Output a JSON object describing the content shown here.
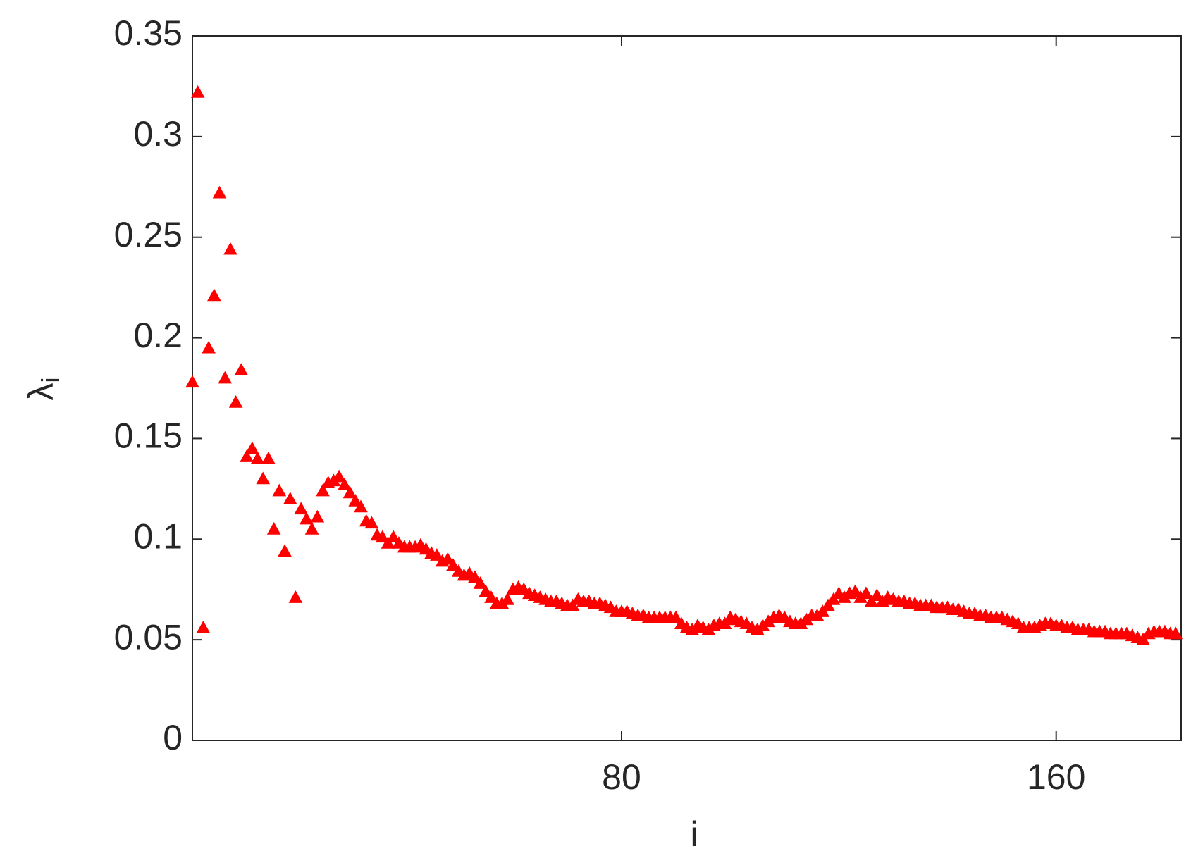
{
  "chart_data": {
    "type": "scatter",
    "marker": "triangle",
    "color": "#ff0000",
    "xlabel": "i",
    "ylabel": "λ",
    "ylabel_subscript": "i",
    "xlim": [
      1,
      183
    ],
    "xticks": [
      80,
      160
    ],
    "ylim": [
      0,
      0.35
    ],
    "yticks": [
      0,
      0.05,
      0.1,
      0.15,
      0.2,
      0.25,
      0.3,
      0.35
    ],
    "x": [
      1,
      2,
      3,
      4,
      5,
      6,
      7,
      8,
      9,
      10,
      11,
      12,
      13,
      14,
      15,
      16,
      17,
      18,
      19,
      20,
      21,
      22,
      23,
      24,
      25,
      26,
      27,
      28,
      29,
      30,
      31,
      32,
      33,
      34,
      35,
      36,
      37,
      38,
      39,
      40,
      41,
      42,
      43,
      44,
      45,
      46,
      47,
      48,
      49,
      50,
      51,
      52,
      53,
      54,
      55,
      56,
      57,
      58,
      59,
      60,
      61,
      62,
      63,
      64,
      65,
      66,
      67,
      68,
      69,
      70,
      71,
      72,
      73,
      74,
      75,
      76,
      77,
      78,
      79,
      80,
      81,
      82,
      83,
      84,
      85,
      86,
      87,
      88,
      89,
      90,
      91,
      92,
      93,
      94,
      95,
      96,
      97,
      98,
      99,
      100,
      101,
      102,
      103,
      104,
      105,
      106,
      107,
      108,
      109,
      110,
      111,
      112,
      113,
      114,
      115,
      116,
      117,
      118,
      119,
      120,
      121,
      122,
      123,
      124,
      125,
      126,
      127,
      128,
      129,
      130,
      131,
      132,
      133,
      134,
      135,
      136,
      137,
      138,
      139,
      140,
      141,
      142,
      143,
      144,
      145,
      146,
      147,
      148,
      149,
      150,
      151,
      152,
      153,
      154,
      155,
      156,
      157,
      158,
      159,
      160,
      161,
      162,
      163,
      164,
      165,
      166,
      167,
      168,
      169,
      170,
      171,
      172,
      173,
      174,
      175,
      176,
      177,
      178,
      179,
      180,
      181,
      182
    ],
    "values": [
      0.178,
      0.322,
      0.056,
      0.195,
      0.221,
      0.272,
      0.18,
      0.244,
      0.168,
      0.184,
      0.141,
      0.145,
      0.14,
      0.13,
      0.14,
      0.105,
      0.124,
      0.094,
      0.12,
      0.071,
      0.115,
      0.11,
      0.105,
      0.111,
      0.124,
      0.128,
      0.129,
      0.131,
      0.127,
      0.123,
      0.119,
      0.116,
      0.109,
      0.108,
      0.102,
      0.101,
      0.098,
      0.101,
      0.098,
      0.096,
      0.096,
      0.096,
      0.097,
      0.095,
      0.093,
      0.092,
      0.089,
      0.09,
      0.087,
      0.084,
      0.082,
      0.083,
      0.081,
      0.078,
      0.074,
      0.071,
      0.068,
      0.068,
      0.07,
      0.075,
      0.076,
      0.075,
      0.073,
      0.072,
      0.071,
      0.07,
      0.069,
      0.069,
      0.068,
      0.067,
      0.067,
      0.07,
      0.069,
      0.069,
      0.068,
      0.068,
      0.067,
      0.066,
      0.064,
      0.064,
      0.064,
      0.063,
      0.062,
      0.062,
      0.061,
      0.061,
      0.061,
      0.061,
      0.061,
      0.061,
      0.058,
      0.056,
      0.055,
      0.057,
      0.056,
      0.055,
      0.057,
      0.058,
      0.058,
      0.061,
      0.06,
      0.059,
      0.058,
      0.056,
      0.055,
      0.057,
      0.059,
      0.061,
      0.062,
      0.061,
      0.059,
      0.058,
      0.058,
      0.06,
      0.062,
      0.062,
      0.064,
      0.067,
      0.07,
      0.073,
      0.071,
      0.073,
      0.074,
      0.071,
      0.073,
      0.069,
      0.072,
      0.069,
      0.071,
      0.07,
      0.069,
      0.069,
      0.068,
      0.068,
      0.067,
      0.067,
      0.067,
      0.066,
      0.066,
      0.066,
      0.065,
      0.065,
      0.064,
      0.063,
      0.063,
      0.062,
      0.062,
      0.061,
      0.061,
      0.061,
      0.06,
      0.059,
      0.058,
      0.056,
      0.056,
      0.056,
      0.057,
      0.058,
      0.058,
      0.057,
      0.057,
      0.056,
      0.056,
      0.055,
      0.055,
      0.055,
      0.054,
      0.054,
      0.054,
      0.053,
      0.053,
      0.053,
      0.053,
      0.052,
      0.051,
      0.05,
      0.053,
      0.054,
      0.054,
      0.054,
      0.053,
      0.053
    ]
  }
}
